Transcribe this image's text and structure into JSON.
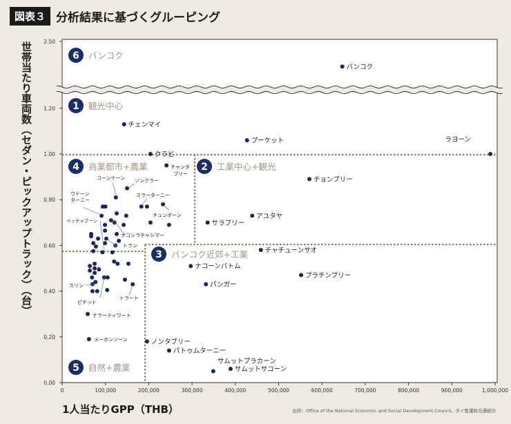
{
  "header": {
    "tag": "図表３",
    "title": "分析結果に基づくグルーピング"
  },
  "colors": {
    "background": "#efebe2",
    "plot": "#ffffff",
    "point": "#1c2857",
    "region_badge": "#1c2e63",
    "region_text": "#a1958a",
    "divider": "#8a7d6e"
  },
  "source": "出所：Office of the National Economic and Social Development Council、タイ陸運局交通統計",
  "chart_data": {
    "type": "scatter",
    "title": "分析結果に基づくグルーピング",
    "xlabel": "1人当たりGPP（THB）",
    "ylabel": "世帯当たり車両数（セダン・ピックアップトラック）（台）",
    "xlim": [
      0,
      1000000
    ],
    "ylim": [
      0,
      2.5
    ],
    "y_axis_break": [
      1.3,
      2.3
    ],
    "grid": false,
    "x_ticks": [
      "0",
      "100,000",
      "200,000",
      "300,000",
      "400,000",
      "500,000",
      "600,000",
      "700,000",
      "800,000",
      "900,000",
      "1,000,000"
    ],
    "y_ticks": [
      "0.00",
      "0.20",
      "0.40",
      "0.60",
      "0.80",
      "1.00",
      "1.20",
      "2.50"
    ],
    "regions": [
      {
        "num": "6",
        "label": "バンコク"
      },
      {
        "num": "1",
        "label": "観光中心"
      },
      {
        "num": "2",
        "label": "工業中心+観光"
      },
      {
        "num": "3",
        "label": "バンコク近郊+工業"
      },
      {
        "num": "4",
        "label": "商業都市+農業"
      },
      {
        "num": "5",
        "label": "自然+農業"
      }
    ],
    "labeled_points": [
      {
        "label": "バンコク",
        "x": 647000,
        "y": 2.39
      },
      {
        "label": "チェンマイ",
        "x": 143000,
        "y": 1.13
      },
      {
        "label": "クラビ",
        "x": 204000,
        "y": 1.0
      },
      {
        "label": "プーケット",
        "x": 427000,
        "y": 1.06
      },
      {
        "label": "ラヨーン",
        "x": 989000,
        "y": 1.0
      },
      {
        "label": "チャンタブリー",
        "x": 241000,
        "y": 0.95
      },
      {
        "label": "チョンブリー",
        "x": 571000,
        "y": 0.89
      },
      {
        "label": "アユタヤ",
        "x": 439000,
        "y": 0.73
      },
      {
        "label": "サラブリー",
        "x": 336000,
        "y": 0.7
      },
      {
        "label": "チャチューンサオ",
        "x": 459000,
        "y": 0.58
      },
      {
        "label": "ナコーンパトム",
        "x": 297000,
        "y": 0.51
      },
      {
        "label": "プラチンブリー",
        "x": 552000,
        "y": 0.47
      },
      {
        "label": "パンガー",
        "x": 332000,
        "y": 0.43
      },
      {
        "label": "ノンタブリー",
        "x": 196000,
        "y": 0.18
      },
      {
        "label": "パトゥムターニー",
        "x": 247000,
        "y": 0.14
      },
      {
        "label": "サムットプラカーン",
        "x": 349000,
        "y": 0.05
      },
      {
        "label": "サムットサコーン",
        "x": 389000,
        "y": 0.06
      },
      {
        "label": "ナラーティワート",
        "x": 59000,
        "y": 0.3
      },
      {
        "label": "メーホンソーン",
        "x": 62000,
        "y": 0.19
      },
      {
        "label": "コーンケーン",
        "x": 124000,
        "y": 0.81
      },
      {
        "label": "ソンクラー",
        "x": 150000,
        "y": 0.85
      },
      {
        "label": "スラーターニー",
        "x": 183000,
        "y": 0.77
      },
      {
        "label": "チュンポーン",
        "x": 233000,
        "y": 0.78
      },
      {
        "label": "ウドーンターニー",
        "x": 91000,
        "y": 0.73
      },
      {
        "label": "ペッチャブーン",
        "x": 93000,
        "y": 0.57
      },
      {
        "label": "ナコンラチャシマー",
        "x": 121000,
        "y": 0.7
      },
      {
        "label": "トラン",
        "x": 102000,
        "y": 0.63
      },
      {
        "label": "スリン",
        "x": 77000,
        "y": 0.44
      },
      {
        "label": "ピチット",
        "x": 97000,
        "y": 0.46
      },
      {
        "label": "トラート",
        "x": 163000,
        "y": 0.43
      }
    ],
    "unlabeled_points": [
      [
        94000,
        0.77
      ],
      [
        100000,
        0.77
      ],
      [
        196000,
        0.77
      ],
      [
        126000,
        0.74
      ],
      [
        148000,
        0.73
      ],
      [
        113000,
        0.71
      ],
      [
        142000,
        0.69
      ],
      [
        204000,
        0.7
      ],
      [
        247000,
        0.69
      ],
      [
        99000,
        0.69
      ],
      [
        99000,
        0.665
      ],
      [
        126000,
        0.65
      ],
      [
        67000,
        0.65
      ],
      [
        67000,
        0.64
      ],
      [
        83000,
        0.63
      ],
      [
        131000,
        0.62
      ],
      [
        72000,
        0.61
      ],
      [
        123000,
        0.6
      ],
      [
        78000,
        0.595
      ],
      [
        99000,
        0.61
      ],
      [
        72000,
        0.575
      ],
      [
        116000,
        0.57
      ],
      [
        120000,
        0.53
      ],
      [
        128000,
        0.52
      ],
      [
        153000,
        0.52
      ],
      [
        64000,
        0.51
      ],
      [
        64000,
        0.49
      ],
      [
        75000,
        0.52
      ],
      [
        75000,
        0.5
      ],
      [
        85000,
        0.495
      ],
      [
        75000,
        0.48
      ],
      [
        69000,
        0.46
      ],
      [
        105000,
        0.46
      ],
      [
        70000,
        0.43
      ],
      [
        145000,
        0.45
      ],
      [
        81000,
        0.4
      ],
      [
        70000,
        0.4
      ],
      [
        104000,
        0.405
      ]
    ]
  }
}
